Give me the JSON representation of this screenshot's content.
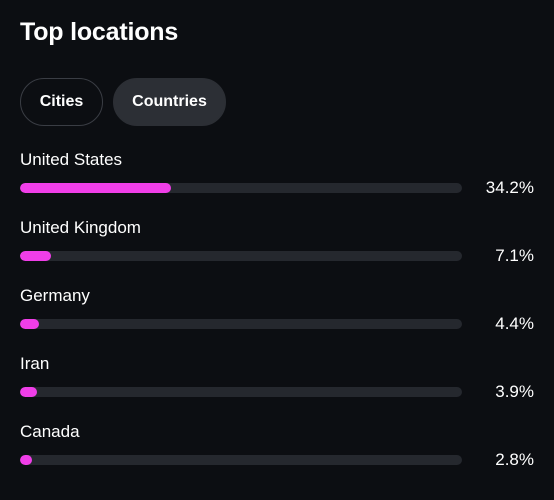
{
  "header": {
    "title": "Top locations"
  },
  "tabs": [
    {
      "label": "Cities",
      "selected": false
    },
    {
      "label": "Countries",
      "selected": true
    }
  ],
  "colors": {
    "bar_fill": "#f03ee8",
    "bar_track": "#25282e",
    "background": "#0c0e12"
  },
  "locations": [
    {
      "name": "United States",
      "percent_label": "34.2%",
      "fraction": 0.342
    },
    {
      "name": "United Kingdom",
      "percent_label": "7.1%",
      "fraction": 0.071
    },
    {
      "name": "Germany",
      "percent_label": "4.4%",
      "fraction": 0.044
    },
    {
      "name": "Iran",
      "percent_label": "3.9%",
      "fraction": 0.039
    },
    {
      "name": "Canada",
      "percent_label": "2.8%",
      "fraction": 0.028
    }
  ]
}
